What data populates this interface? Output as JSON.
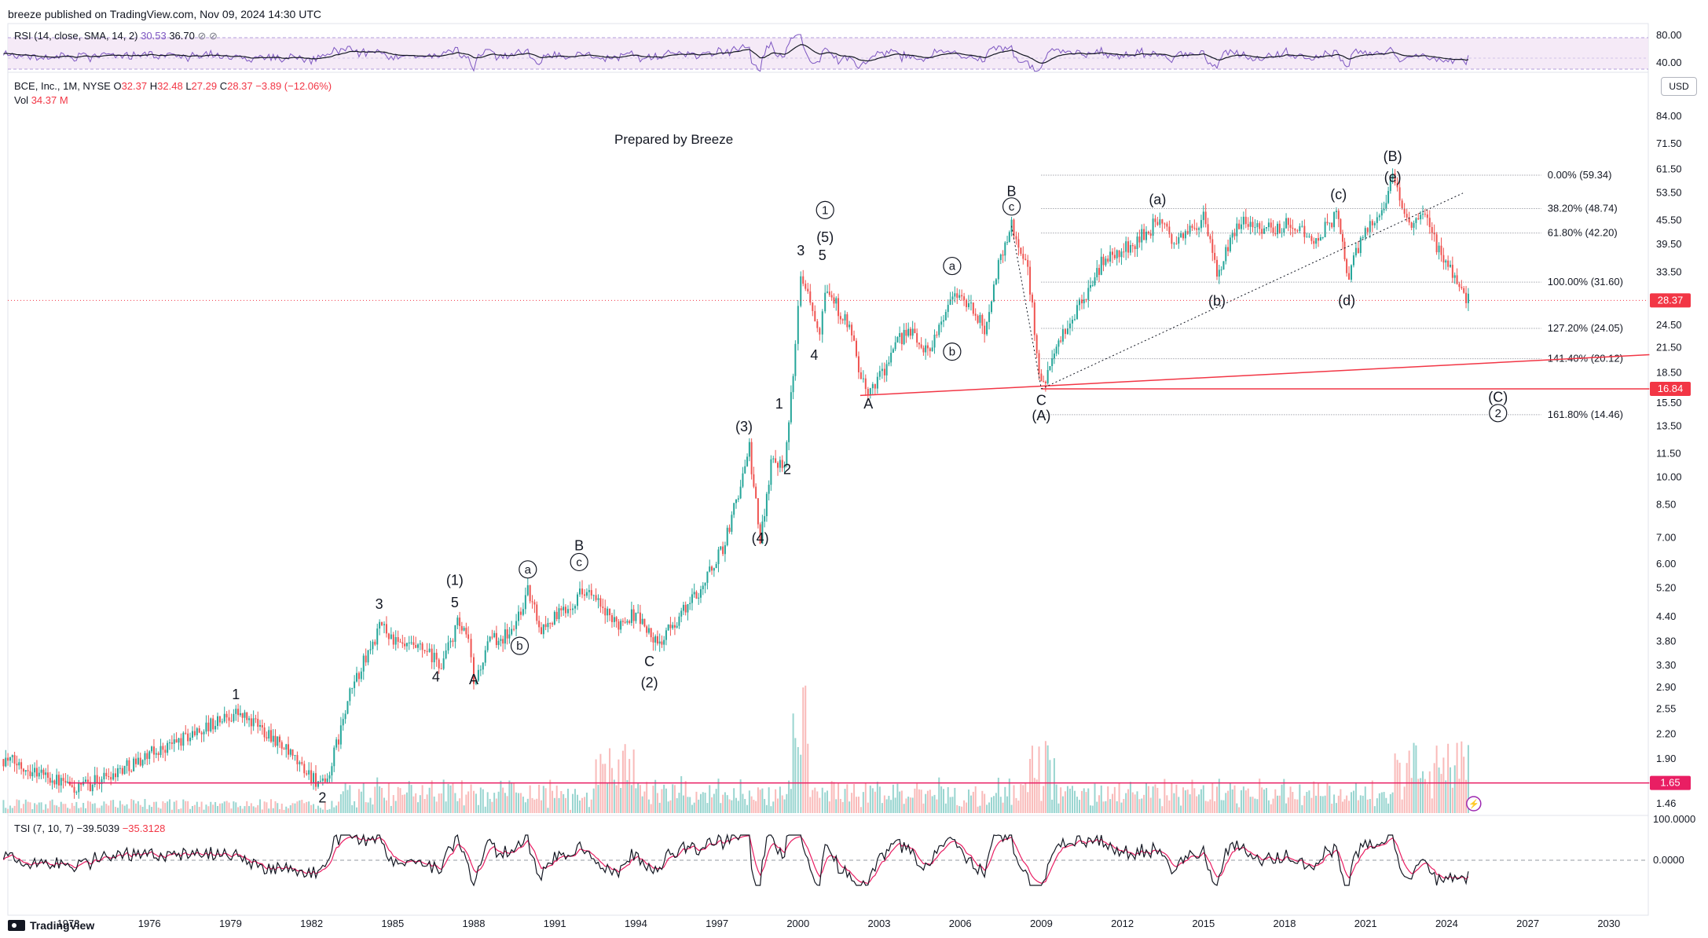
{
  "header": {
    "publish_line": "breeze published on TradingView.com, Nov 09, 2024 14:30 UTC"
  },
  "rsi_legend": {
    "name": "RSI (14, close, SMA, 14, 2)",
    "v1": "30.53",
    "v2": "36.70",
    "icons": "⊘ ⊘"
  },
  "main_legend": {
    "symbol": "BCE, Inc., 1M, NYSE",
    "o_label": "O",
    "o": "32.37",
    "h_label": "H",
    "h": "32.48",
    "l_label": "L",
    "l": "27.29",
    "c_label": "C",
    "c": "28.37",
    "change": "−3.89 (−12.06%)"
  },
  "vol_legend": {
    "label": "Vol",
    "value": "34.37 M"
  },
  "tsi_legend": {
    "name": "TSI (7, 10, 7)",
    "v1": "−39.5039",
    "v2": "−35.3128"
  },
  "annotation": "Prepared by Breeze",
  "currency_button": "USD",
  "footer": {
    "brand": "TradingView"
  },
  "colors": {
    "up": "#26a69a",
    "down": "#ef5350",
    "rsi_line": "#7e57c2",
    "rsi_band": "#e1bee7",
    "tsi_signal": "#e91e63",
    "support": "#f23645",
    "last_price": "#f23645"
  },
  "chart_data": {
    "type": "candlestick",
    "symbol": "BCE",
    "interval": "1M",
    "price_axis_ticks": [
      "84.00",
      "71.50",
      "61.50",
      "53.50",
      "45.50",
      "39.50",
      "33.50",
      "28.37",
      "24.50",
      "21.50",
      "18.50",
      "16.84",
      "15.50",
      "13.50",
      "11.50",
      "10.00",
      "8.50",
      "7.00",
      "6.00",
      "5.20",
      "4.40",
      "3.80",
      "3.30",
      "2.90",
      "2.55",
      "2.20",
      "1.90",
      "1.65",
      "1.46"
    ],
    "rsi_axis_ticks": [
      "80.00",
      "40.00"
    ],
    "tsi_axis_ticks": [
      "100.0000",
      "0.0000"
    ],
    "x_axis_ticks": [
      "1973",
      "1976",
      "1979",
      "1982",
      "1985",
      "1988",
      "1991",
      "1994",
      "1997",
      "2000",
      "2003",
      "2006",
      "2009",
      "2012",
      "2015",
      "2018",
      "2021",
      "2024",
      "2027",
      "2030"
    ],
    "last_price": "28.37",
    "price_labels": [
      "28.37",
      "16.84",
      "1.65"
    ],
    "fib_levels": [
      {
        "label": "0.00% (59.34)",
        "price": 59.34
      },
      {
        "label": "38.20% (48.74)",
        "price": 48.74
      },
      {
        "label": "61.80% (42.20)",
        "price": 42.2
      },
      {
        "label": "100.00% (31.60)",
        "price": 31.6
      },
      {
        "label": "127.20% (24.05)",
        "price": 24.05
      },
      {
        "label": "141.40% (20.12)",
        "price": 20.12
      },
      {
        "label": "161.80% (14.46)",
        "price": 14.46
      }
    ],
    "wave_labels": [
      {
        "text": "1",
        "year": 1979.2,
        "price": 2.7
      },
      {
        "text": "2",
        "year": 1982.4,
        "price": 1.47,
        "below": true
      },
      {
        "text": "3",
        "year": 1984.5,
        "price": 4.6
      },
      {
        "text": "4",
        "year": 1986.6,
        "price": 3.0,
        "below": true
      },
      {
        "text": "5",
        "year": 1987.3,
        "price": 4.65
      },
      {
        "text": "(1)",
        "year": 1987.3,
        "price": 5.3
      },
      {
        "text": "A",
        "year": 1988.0,
        "price": 2.95,
        "below": true
      },
      {
        "text": "a",
        "year": 1990.0,
        "price": 5.65,
        "circled": true
      },
      {
        "text": "b",
        "year": 1989.7,
        "price": 3.6,
        "circled": true,
        "below": true
      },
      {
        "text": "B",
        "year": 1991.9,
        "price": 6.5
      },
      {
        "text": "c",
        "year": 1991.9,
        "price": 5.9,
        "circled": true
      },
      {
        "text": "C",
        "year": 1994.5,
        "price": 3.28,
        "below": true
      },
      {
        "text": "(2)",
        "year": 1994.5,
        "price": 2.9,
        "below": true
      },
      {
        "text": "(3)",
        "year": 1998.0,
        "price": 13.1
      },
      {
        "text": "(4)",
        "year": 1998.6,
        "price": 6.8,
        "below": true
      },
      {
        "text": "1",
        "year": 1999.3,
        "price": 15.0
      },
      {
        "text": "2",
        "year": 1999.6,
        "price": 10.2,
        "below": true
      },
      {
        "text": "3",
        "year": 2000.1,
        "price": 37.0
      },
      {
        "text": "5",
        "year": 2000.9,
        "price": 36.0
      },
      {
        "text": "(5)",
        "year": 2001.0,
        "price": 40.0
      },
      {
        "text": "1",
        "year": 2001.0,
        "price": 47.0,
        "circled": true
      },
      {
        "text": "4",
        "year": 2000.6,
        "price": 20.0,
        "below": true
      },
      {
        "text": "A",
        "year": 2002.6,
        "price": 15.0,
        "below": true
      },
      {
        "text": "a",
        "year": 2005.7,
        "price": 33.8,
        "circled": true
      },
      {
        "text": "b",
        "year": 2005.7,
        "price": 20.4,
        "circled": true,
        "below": true
      },
      {
        "text": "B",
        "year": 2007.9,
        "price": 52.5
      },
      {
        "text": "c",
        "year": 2007.9,
        "price": 48.0,
        "circled": true
      },
      {
        "text": "C",
        "year": 2009.0,
        "price": 15.3,
        "below": true
      },
      {
        "text": "(A)",
        "year": 2009.0,
        "price": 14.0,
        "below": true
      },
      {
        "text": "(a)",
        "year": 2013.3,
        "price": 50.0
      },
      {
        "text": "(b)",
        "year": 2015.5,
        "price": 27.5,
        "below": true
      },
      {
        "text": "(c)",
        "year": 2020.0,
        "price": 51.5
      },
      {
        "text": "(d)",
        "year": 2020.3,
        "price": 27.6,
        "below": true
      },
      {
        "text": "(e)",
        "year": 2022.0,
        "price": 57.0
      },
      {
        "text": "(B)",
        "year": 2022.0,
        "price": 64.5
      },
      {
        "text": "(C)",
        "year": 2025.9,
        "price": 15.6
      },
      {
        "text": "2",
        "year": 2025.9,
        "price": 14.2,
        "circled": true
      }
    ],
    "trendlines": [
      {
        "name": "support-1973",
        "from": [
          1973.0,
          1.65
        ],
        "to": [
          2031.5,
          1.65
        ]
      },
      {
        "name": "support-2009",
        "from": [
          2009.0,
          16.84
        ],
        "to": [
          2031.5,
          16.84
        ]
      },
      {
        "name": "channel-2002",
        "from": [
          2002.3,
          16.2
        ],
        "to": [
          2031.5,
          20.6
        ]
      },
      {
        "name": "trend-2009",
        "from": [
          2009.0,
          16.84
        ],
        "to": [
          2024.6,
          53.4
        ]
      }
    ],
    "pivots": [
      [
        1970.6,
        1.9
      ],
      [
        1972.0,
        1.75
      ],
      [
        1973.3,
        1.58
      ],
      [
        1975.0,
        1.8
      ],
      [
        1977.0,
        2.1
      ],
      [
        1979.2,
        2.5
      ],
      [
        1980.5,
        2.2
      ],
      [
        1981.3,
        1.9
      ],
      [
        1982.5,
        1.6
      ],
      [
        1983.5,
        2.9
      ],
      [
        1984.6,
        4.2
      ],
      [
        1985.2,
        3.7
      ],
      [
        1986.1,
        3.6
      ],
      [
        1986.8,
        3.3
      ],
      [
        1987.4,
        4.2
      ],
      [
        1987.8,
        3.8
      ],
      [
        1988.0,
        2.95
      ],
      [
        1988.6,
        3.8
      ],
      [
        1989.4,
        4.0
      ],
      [
        1990.0,
        5.1
      ],
      [
        1990.5,
        4.1
      ],
      [
        1991.4,
        4.6
      ],
      [
        1992.1,
        5.2
      ],
      [
        1993.2,
        4.2
      ],
      [
        1994.0,
        4.5
      ],
      [
        1994.8,
        3.7
      ],
      [
        1995.6,
        4.4
      ],
      [
        1996.4,
        5.2
      ],
      [
        1997.3,
        6.8
      ],
      [
        1998.2,
        11.8
      ],
      [
        1998.6,
        6.8
      ],
      [
        1999.0,
        11.0
      ],
      [
        1999.5,
        11.0
      ],
      [
        1999.9,
        21.0
      ],
      [
        2000.1,
        34.0
      ],
      [
        2000.8,
        24.0
      ],
      [
        2001.0,
        31.0
      ],
      [
        2001.9,
        24.0
      ],
      [
        2002.5,
        16.2
      ],
      [
        2003.2,
        19.0
      ],
      [
        2004.0,
        24.0
      ],
      [
        2004.8,
        21.0
      ],
      [
        2005.8,
        30.0
      ],
      [
        2006.4,
        27.0
      ],
      [
        2006.9,
        24.0
      ],
      [
        2007.5,
        37.0
      ],
      [
        2007.9,
        44.0
      ],
      [
        2008.5,
        34.0
      ],
      [
        2009.0,
        17.0
      ],
      [
        2009.8,
        23.0
      ],
      [
        2010.5,
        28.0
      ],
      [
        2011.3,
        36.0
      ],
      [
        2012.3,
        39.0
      ],
      [
        2013.3,
        45.0
      ],
      [
        2014.0,
        40.0
      ],
      [
        2015.0,
        46.0
      ],
      [
        2015.5,
        33.0
      ],
      [
        2016.4,
        46.0
      ],
      [
        2017.5,
        43.0
      ],
      [
        2018.3,
        45.0
      ],
      [
        2019.0,
        40.0
      ],
      [
        2020.0,
        47.0
      ],
      [
        2020.3,
        32.0
      ],
      [
        2020.9,
        42.0
      ],
      [
        2021.6,
        49.0
      ],
      [
        2022.0,
        57.5
      ],
      [
        2022.7,
        44.0
      ],
      [
        2023.2,
        46.0
      ],
      [
        2023.8,
        37.0
      ],
      [
        2024.3,
        33.0
      ],
      [
        2024.8,
        28.37
      ]
    ]
  }
}
